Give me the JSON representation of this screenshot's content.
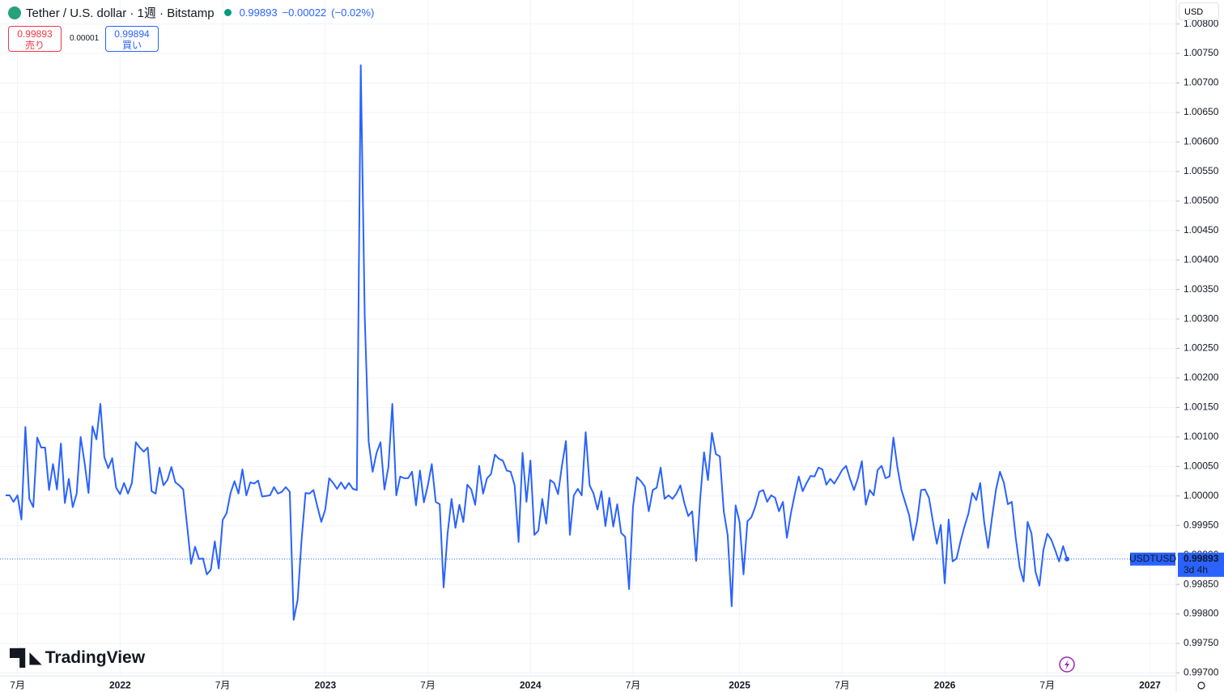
{
  "chart_data": {
    "type": "line",
    "title": "Tether / U.S. dollar · 1週 · Bitstamp",
    "categories": [
      null,
      null,
      null,
      "7月",
      null,
      null,
      null,
      null,
      null,
      null,
      null,
      null,
      null,
      null,
      null,
      null,
      null,
      null,
      null,
      null,
      null,
      null,
      null,
      null,
      null,
      null,
      null,
      null,
      null,
      "2022",
      null,
      null,
      null,
      null,
      null,
      null,
      null,
      null,
      null,
      null,
      null,
      null,
      null,
      null,
      null,
      null,
      null,
      null,
      null,
      null,
      null,
      null,
      null,
      null,
      null,
      "7月",
      null,
      null,
      null,
      null,
      null,
      null,
      null,
      null,
      null,
      null,
      null,
      null,
      null,
      null,
      null,
      null,
      null,
      null,
      null,
      null,
      null,
      null,
      null,
      null,
      null,
      "2023",
      null,
      null,
      null,
      null,
      null,
      null,
      null,
      null,
      null,
      null,
      null,
      null,
      null,
      null,
      null,
      null,
      null,
      null,
      null,
      null,
      null,
      null,
      null,
      null,
      null,
      "7月",
      null,
      null,
      null,
      null,
      null,
      null,
      null,
      null,
      null,
      null,
      null,
      null,
      null,
      null,
      null,
      null,
      null,
      null,
      null,
      null,
      null,
      null,
      null,
      null,
      null,
      "2024",
      null,
      null,
      null,
      null,
      null,
      null,
      null,
      null,
      null,
      null,
      null,
      null,
      null,
      null,
      null,
      null,
      null,
      null,
      null,
      null,
      null,
      null,
      null,
      null,
      null,
      "7月",
      null,
      null,
      null,
      null,
      null,
      null,
      null,
      null,
      null,
      null,
      null,
      null,
      null,
      null,
      null,
      null,
      null,
      null,
      null,
      null,
      null,
      null,
      null,
      null,
      null,
      null,
      "2025",
      null,
      null,
      null,
      null,
      null,
      null,
      null,
      null,
      null,
      null,
      null,
      null,
      null,
      null,
      null,
      null,
      null,
      null,
      null,
      null,
      null,
      null,
      null,
      null,
      null,
      "7月",
      null,
      null,
      null,
      null,
      null,
      null,
      null,
      null,
      null,
      null,
      null,
      null,
      null,
      null,
      null,
      null,
      null,
      null,
      null,
      null,
      null,
      null,
      null,
      null,
      null,
      "2026",
      null,
      null,
      null,
      null,
      null,
      null,
      null,
      null,
      null,
      null,
      null,
      null,
      null,
      null,
      null,
      null,
      null,
      null,
      null,
      null,
      null,
      null,
      null,
      null,
      null,
      "7月",
      null,
      null,
      null,
      null,
      null,
      null,
      null,
      null,
      null,
      null,
      null,
      null,
      null,
      null,
      null,
      null,
      null,
      null,
      null,
      null,
      null,
      null,
      null,
      null,
      null,
      "2027",
      null
    ],
    "series": [
      {
        "name": "USDTUSD",
        "color": "#2962ff",
        "values": [
          1.00001,
          1.00001,
          0.9999,
          1.00001,
          0.9996,
          1.00117,
          0.99995,
          0.99981,
          1.00099,
          1.00082,
          1.00082,
          1.0001,
          1.00054,
          1.00011,
          1.00089,
          0.99988,
          1.00029,
          0.99981,
          1.00004,
          1.001,
          1.00056,
          1.00005,
          1.00118,
          1.00096,
          1.00156,
          1.00066,
          1.00047,
          1.00064,
          1.00014,
          1.00003,
          1.00022,
          1.00004,
          1.00022,
          1.00091,
          1.00082,
          1.00075,
          1.00082,
          1.00008,
          1.00004,
          1.00048,
          1.00018,
          1.00027,
          1.00049,
          1.00023,
          1.00018,
          1.00011,
          0.99949,
          0.99885,
          0.99914,
          0.99893,
          0.99894,
          0.99867,
          0.99875,
          0.99923,
          0.99877,
          0.99959,
          0.99971,
          1.00005,
          1.00025,
          1.00004,
          1.00045,
          1.00001,
          1.00023,
          1.00021,
          1.00026,
          0.99999,
          1.0,
          1.00001,
          1.00015,
          1.00004,
          1.00007,
          1.00015,
          1.00007,
          0.9979,
          0.99824,
          0.99926,
          1.00005,
          1.00004,
          1.0001,
          0.99982,
          0.99956,
          0.99977,
          1.0003,
          1.00022,
          1.00012,
          1.00023,
          1.00012,
          1.00022,
          1.00012,
          1.0001,
          1.0073,
          1.00306,
          1.00092,
          1.00041,
          1.00073,
          1.00091,
          1.00011,
          1.00049,
          1.00156,
          1.00001,
          1.00033,
          1.0003,
          1.0003,
          1.00041,
          0.99984,
          1.00043,
          0.99989,
          1.00018,
          1.00054,
          0.9999,
          0.99986,
          0.99845,
          0.99936,
          0.99995,
          0.99946,
          0.99985,
          0.99956,
          1.00019,
          1.00011,
          0.99985,
          1.00051,
          1.00004,
          1.0003,
          1.00037,
          1.0007,
          1.00063,
          1.0006,
          1.00043,
          1.00041,
          1.00018,
          0.99922,
          1.00073,
          0.9999,
          1.0006,
          0.99934,
          0.99941,
          0.99995,
          0.99953,
          1.00027,
          1.00022,
          1.00003,
          1.00052,
          1.00093,
          0.99934,
          1.00001,
          1.00012,
          1.00001,
          1.00108,
          1.00018,
          1.00004,
          0.99977,
          1.00008,
          0.99949,
          0.99997,
          0.99948,
          0.99986,
          0.99937,
          0.99931,
          0.99842,
          0.99982,
          1.00032,
          1.00025,
          1.00016,
          0.99974,
          1.0001,
          1.00014,
          1.00048,
          0.99995,
          1.00001,
          0.99995,
          1.00004,
          1.00018,
          0.99988,
          0.99966,
          0.99974,
          0.9989,
          0.99993,
          1.00074,
          1.00027,
          1.00107,
          1.00071,
          1.00067,
          0.99974,
          0.99933,
          0.99813,
          0.99984,
          0.99956,
          0.99867,
          0.99957,
          0.99964,
          0.99982,
          1.00007,
          1.0001,
          0.9999,
          1.00001,
          0.99997,
          0.99974,
          0.9999,
          0.99929,
          0.9997,
          1.00003,
          1.00033,
          1.00008,
          1.00022,
          1.00034,
          1.00033,
          1.00048,
          1.00045,
          1.00019,
          1.00029,
          1.00021,
          1.00032,
          1.00044,
          1.00051,
          1.00029,
          1.0001,
          1.0003,
          1.00059,
          0.99985,
          1.0001,
          1.00001,
          1.00044,
          1.00051,
          1.0003,
          1.00033,
          1.00099,
          1.00049,
          1.00011,
          0.99989,
          0.99967,
          0.99925,
          0.99957,
          1.0001,
          1.00011,
          0.99997,
          0.99957,
          0.99919,
          0.99951,
          0.99852,
          0.9996,
          0.99889,
          0.99894,
          0.99923,
          0.99948,
          0.9997,
          1.00005,
          0.99993,
          1.00022,
          0.99956,
          0.99912,
          0.99964,
          1.00011,
          1.00041,
          1.00022,
          0.99986,
          0.9999,
          0.99929,
          0.99879,
          0.99855,
          0.99956,
          0.99936,
          0.99872,
          0.99848,
          0.99908,
          0.99936,
          0.99926,
          0.99908,
          0.99889,
          0.99915,
          0.99893,
          null,
          null,
          null,
          null,
          null,
          null,
          null,
          null,
          null,
          null,
          null,
          null,
          null,
          null,
          null,
          null,
          null,
          null,
          null,
          null,
          null,
          null
        ]
      }
    ],
    "ylim": [
      0.99695,
      1.008
    ],
    "yticks": [
      {
        "value": 0.997,
        "label": "0.99700"
      },
      {
        "value": 0.9975,
        "label": "0.99750"
      },
      {
        "value": 0.998,
        "label": "0.99800"
      },
      {
        "value": 0.9985,
        "label": "0.99850"
      },
      {
        "value": 0.999,
        "label": "0.99900"
      },
      {
        "value": 0.9995,
        "label": "0.99950"
      },
      {
        "value": 1,
        "label": "1.00000"
      },
      {
        "value": 1.0005,
        "label": "1.00050"
      },
      {
        "value": 1.001,
        "label": "1.00100"
      },
      {
        "value": 1.0015,
        "label": "1.00150"
      },
      {
        "value": 1.002,
        "label": "1.00200"
      },
      {
        "value": 1.0025,
        "label": "1.00250"
      },
      {
        "value": 1.003,
        "label": "1.00300"
      },
      {
        "value": 1.0035,
        "label": "1.00350"
      },
      {
        "value": 1.004,
        "label": "1.00400"
      },
      {
        "value": 1.0045,
        "label": "1.00450"
      },
      {
        "value": 1.005,
        "label": "1.00500"
      },
      {
        "value": 1.0055,
        "label": "1.00550"
      },
      {
        "value": 1.006,
        "label": "1.00600"
      },
      {
        "value": 1.0065,
        "label": "1.00650"
      },
      {
        "value": 1.007,
        "label": "1.00700"
      },
      {
        "value": 1.0075,
        "label": "1.00750"
      },
      {
        "value": 1.008,
        "label": "1.00800"
      }
    ],
    "grid": true
  },
  "header": {
    "price": "0.99893",
    "change": "−0.00022",
    "change_pct": "(−0.02%)"
  },
  "trade": {
    "sell_price": "0.99893",
    "sell_label": "売り",
    "spread": "0.00001",
    "buy_price": "0.99894",
    "buy_label": "買い"
  },
  "currency": "USD",
  "price_tag": {
    "price": "0.99893",
    "countdown": "3d 4h"
  },
  "brand": "TradingView"
}
